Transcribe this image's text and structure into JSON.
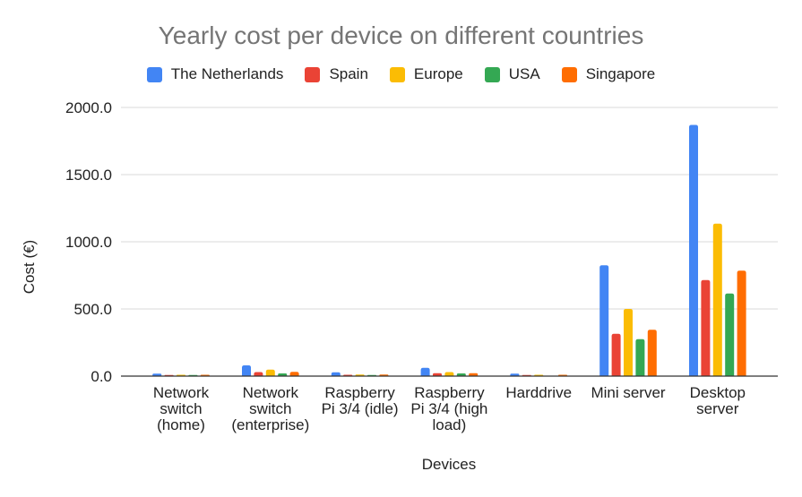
{
  "chart_data": {
    "type": "bar",
    "title": "Yearly cost per device on different countries",
    "xlabel": "Devices",
    "ylabel": "Cost (€)",
    "ylim": [
      0,
      2000
    ],
    "yticks": [
      "0.0",
      "500.0",
      "1000.0",
      "1500.0",
      "2000.0"
    ],
    "grid": true,
    "legend_position": "top",
    "categories": [
      "Network switch (home)",
      "Network switch (enterprise)",
      "Raspberry Pi 3/4 (idle)",
      "Raspberry Pi 3/4 (high load)",
      "Harddrive",
      "Mini server",
      "Desktop server"
    ],
    "category_label_lines": [
      [
        "Network",
        "switch",
        "(home)"
      ],
      [
        "Network",
        "switch",
        "(enterprise)"
      ],
      [
        "Raspberry",
        "Pi 3/4 (idle)"
      ],
      [
        "Raspberry",
        "Pi 3/4 (high",
        "load)"
      ],
      [
        "Harddrive"
      ],
      [
        "Mini server"
      ],
      [
        "Desktop",
        "server"
      ]
    ],
    "series": [
      {
        "name": "The Netherlands",
        "color": "#4285F4",
        "values": [
          18,
          80,
          28,
          62,
          18,
          825,
          1870
        ]
      },
      {
        "name": "Spain",
        "color": "#EA4335",
        "values": [
          8,
          30,
          10,
          22,
          8,
          315,
          715
        ]
      },
      {
        "name": "Europe",
        "color": "#FBBC04",
        "values": [
          10,
          48,
          12,
          30,
          10,
          500,
          1135
        ]
      },
      {
        "name": "USA",
        "color": "#34A853",
        "values": [
          8,
          20,
          8,
          20,
          0,
          275,
          615
        ]
      },
      {
        "name": "Singapore",
        "color": "#FF6D01",
        "values": [
          10,
          32,
          12,
          22,
          10,
          345,
          785
        ]
      }
    ]
  }
}
